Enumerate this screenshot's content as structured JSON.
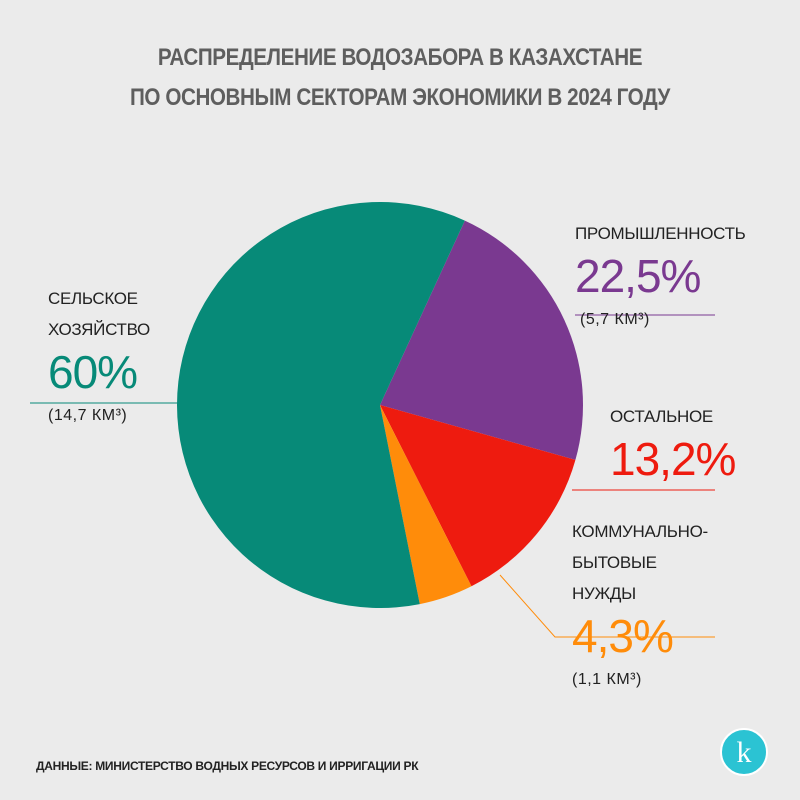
{
  "chart_data": {
    "type": "pie",
    "title_lines": [
      "РАСПРЕДЕЛЕНИЕ ВОДОЗАБОРА В КАЗАХСТАНЕ",
      "ПО ОСНОВНЫМ СЕКТОРАМ ЭКОНОМИКИ В 2024 ГОДУ"
    ],
    "series": [
      {
        "name": "ПРОМЫШЛЕННОСТЬ",
        "color": "#7a3990",
        "values": [
          22.5
        ],
        "value_labels": [
          "22,5%"
        ],
        "volume": "(5,7 КМ³)"
      },
      {
        "name": "ОСТАЛЬНОЕ",
        "color": "#ee1b0f",
        "values": [
          13.2
        ],
        "value_labels": [
          "13,2%"
        ]
      },
      {
        "name": "КОММУНАЛЬНО-БЫТОВЫЕ НУЖДЫ",
        "color": "#ff8c0a",
        "values": [
          4.3
        ],
        "value_labels": [
          "4,3%"
        ],
        "volume": "(1,1 КМ³)"
      },
      {
        "name": "СЕЛЬСКОЕ ХОЗЯЙСТВО",
        "color": "#078a78",
        "values": [
          60
        ],
        "value_labels": [
          "60%"
        ],
        "volume": "(14,7 КМ³)"
      }
    ],
    "source": "ДАННЫЕ: МИНИСТЕРСТВО ВОДНЫХ РЕСУРСОВ И ИРРИГАЦИИ РК"
  }
}
